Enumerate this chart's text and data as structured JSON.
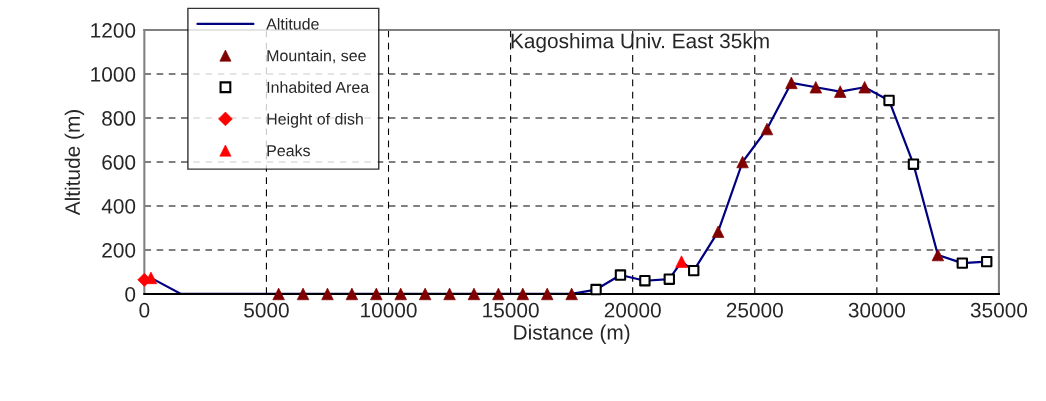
{
  "chart_data": {
    "type": "line",
    "title": "Kagoshima Univ. East 35km",
    "xlabel": "Distance (m)",
    "ylabel": "Altitude (m)",
    "xlim": [
      0,
      35000
    ],
    "xticks": [
      0,
      5000,
      10000,
      15000,
      20000,
      25000,
      30000,
      35000
    ],
    "ylim": [
      0,
      1200
    ],
    "yticks": [
      0,
      200,
      400,
      600,
      800,
      1000,
      1200
    ],
    "grid": true,
    "legend": "top left",
    "series": [
      {
        "name": "Altitude",
        "color": "#000080",
        "marker": "none",
        "x": [
          0,
          270,
          1500,
          5500,
          6500,
          7500,
          8500,
          9500,
          10500,
          11500,
          12500,
          13500,
          14500,
          15500,
          16500,
          17500,
          18500,
          19500,
          20500,
          21500,
          22000,
          22500,
          23500,
          24500,
          25500,
          26500,
          27500,
          28500,
          29500,
          30500,
          31500,
          32500,
          33500,
          34500
        ],
        "values": [
          64,
          73,
          0,
          0,
          0,
          0,
          0,
          0,
          0,
          0,
          0,
          0,
          0,
          0,
          0,
          0,
          20,
          86,
          60,
          67,
          147,
          106,
          283,
          600,
          750,
          960,
          940,
          920,
          940,
          880,
          590,
          177,
          140,
          147
        ]
      },
      {
        "name": "Mountain, see",
        "type": "scatter",
        "color": "#800000",
        "marker": "triangle",
        "x": [
          5500,
          6500,
          7500,
          8500,
          9500,
          10500,
          11500,
          12500,
          13500,
          14500,
          15500,
          16500,
          17500,
          23500,
          24500,
          25500,
          26500,
          27500,
          28500,
          29500,
          32500
        ],
        "values": [
          0,
          0,
          0,
          0,
          0,
          0,
          0,
          0,
          0,
          0,
          0,
          0,
          0,
          283,
          600,
          750,
          960,
          940,
          920,
          940,
          177
        ]
      },
      {
        "name": "Inhabited Area",
        "type": "scatter",
        "color": "#000000",
        "marker": "square",
        "x": [
          18500,
          19500,
          20500,
          21500,
          22500,
          30500,
          31500,
          33500,
          34500
        ],
        "values": [
          20,
          86,
          60,
          67,
          106,
          880,
          590,
          140,
          147
        ]
      },
      {
        "name": "Height of dish",
        "type": "scatter",
        "color": "#ff0000",
        "marker": "diamond",
        "x": [
          0
        ],
        "values": [
          64
        ]
      },
      {
        "name": "Peaks",
        "type": "scatter",
        "color": "#ff0000",
        "marker": "triangle",
        "x": [
          270,
          22000
        ],
        "values": [
          73,
          147
        ]
      }
    ]
  }
}
